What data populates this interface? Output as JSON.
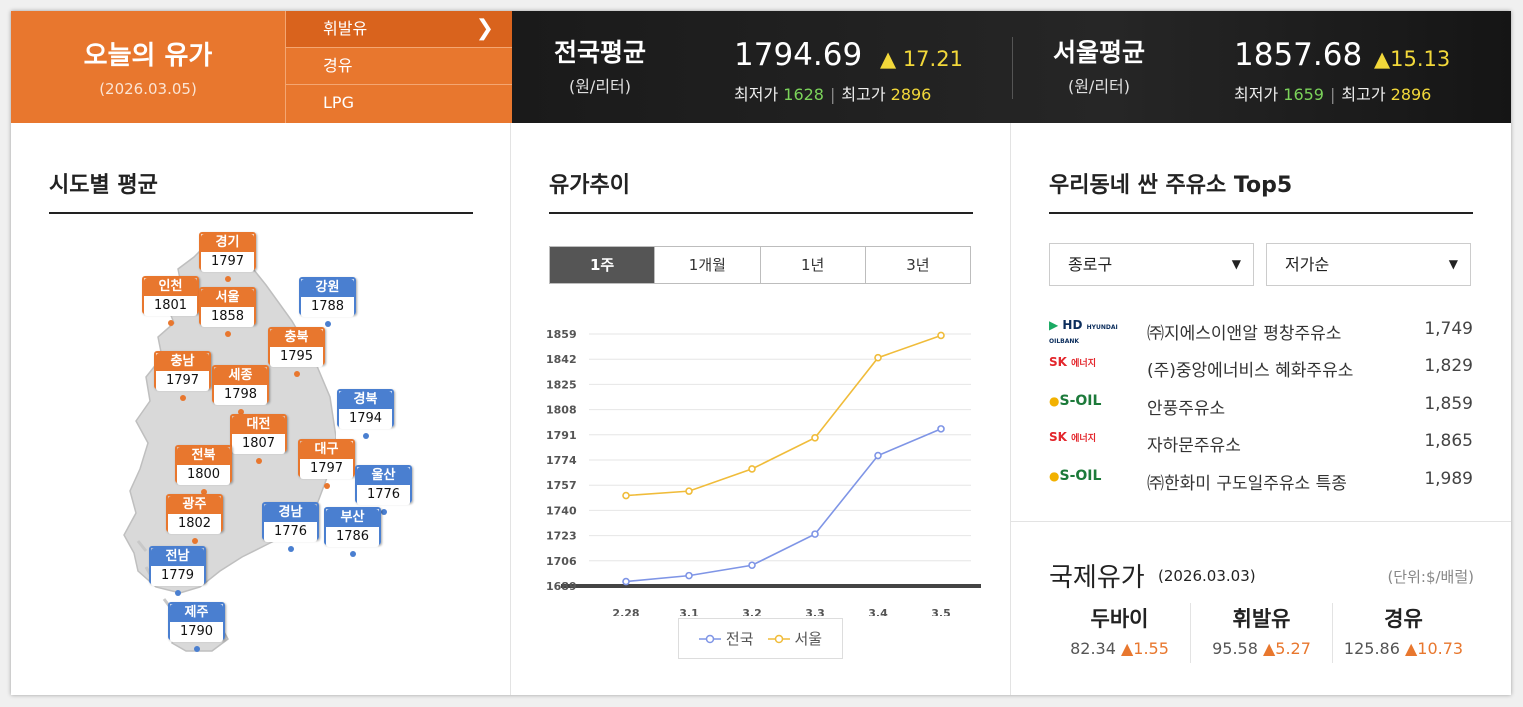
{
  "header": {
    "today_title": "오늘의 유가",
    "today_date": "(2026.03.05)",
    "fuel_types": [
      "휘발유",
      "경유",
      "LPG"
    ],
    "active_fuel": "휘발유",
    "national": {
      "title": "전국평균",
      "unit": "(원/리터)",
      "price": "1794.69",
      "change": "▲ 17.21",
      "min_label": "최저가",
      "min_value": "1628",
      "max_label": "최고가",
      "max_value": "2896"
    },
    "seoul": {
      "title": "서울평균",
      "unit": "(원/리터)",
      "price": "1857.68",
      "change": "▲15.13",
      "min_label": "최저가",
      "min_value": "1659",
      "max_label": "최고가",
      "max_value": "2896"
    }
  },
  "regional": {
    "title": "시도별 평균",
    "cities": [
      {
        "name": "경기",
        "value": "1797",
        "color": "orange"
      },
      {
        "name": "인천",
        "value": "1801",
        "color": "orange"
      },
      {
        "name": "서울",
        "value": "1858",
        "color": "orange"
      },
      {
        "name": "강원",
        "value": "1788",
        "color": "blue"
      },
      {
        "name": "충북",
        "value": "1795",
        "color": "orange"
      },
      {
        "name": "충남",
        "value": "1797",
        "color": "orange"
      },
      {
        "name": "세종",
        "value": "1798",
        "color": "orange"
      },
      {
        "name": "경북",
        "value": "1794",
        "color": "blue"
      },
      {
        "name": "대전",
        "value": "1807",
        "color": "orange"
      },
      {
        "name": "전북",
        "value": "1800",
        "color": "orange"
      },
      {
        "name": "대구",
        "value": "1797",
        "color": "orange"
      },
      {
        "name": "울산",
        "value": "1776",
        "color": "blue"
      },
      {
        "name": "광주",
        "value": "1802",
        "color": "orange"
      },
      {
        "name": "경남",
        "value": "1776",
        "color": "blue"
      },
      {
        "name": "부산",
        "value": "1786",
        "color": "blue"
      },
      {
        "name": "전남",
        "value": "1779",
        "color": "blue"
      },
      {
        "name": "제주",
        "value": "1790",
        "color": "blue"
      }
    ]
  },
  "trend": {
    "title": "유가추이",
    "tabs": [
      "1주",
      "1개월",
      "1년",
      "3년"
    ],
    "active_tab": "1주"
  },
  "chart_data": {
    "type": "line",
    "x": [
      "2.28",
      "3.1",
      "3.2",
      "3.3",
      "3.4",
      "3.5"
    ],
    "yticks": [
      1689,
      1706,
      1723,
      1740,
      1757,
      1774,
      1791,
      1808,
      1825,
      1842,
      1859
    ],
    "ylim": [
      1689,
      1859
    ],
    "grid": true,
    "legend_position": "bottom",
    "series": [
      {
        "name": "전국",
        "color": "#7f95e6",
        "values": [
          1692,
          1696,
          1703,
          1724,
          1777,
          1795
        ]
      },
      {
        "name": "서울",
        "color": "#f0bc3a",
        "values": [
          1750,
          1753,
          1768,
          1789,
          1843,
          1858
        ]
      }
    ]
  },
  "top5": {
    "title": "우리동네 싼 주유소 Top5",
    "district": "종로구",
    "sort": "저가순",
    "stations": [
      {
        "brand": "HD HYUNDAI OILBANK",
        "brand_label": "HD",
        "brand_sub": "HYUNDAI OILBANK",
        "name": "㈜지에스이앤알 평창주유소",
        "price": "1,749"
      },
      {
        "brand": "SK 에너지",
        "brand_label": "SK",
        "brand_sub": "에너지",
        "name": "(주)중앙에너비스 혜화주유소",
        "price": "1,829"
      },
      {
        "brand": "S-OIL",
        "brand_label": "S-OIL",
        "brand_sub": "",
        "name": "안풍주유소",
        "price": "1,859"
      },
      {
        "brand": "SK 에너지",
        "brand_label": "SK",
        "brand_sub": "에너지",
        "name": "자하문주유소",
        "price": "1,865"
      },
      {
        "brand": "S-OIL",
        "brand_label": "S-OIL",
        "brand_sub": "",
        "name": "㈜한화미 구도일주유소 특종",
        "price": "1,989"
      }
    ]
  },
  "international": {
    "title": "국제유가",
    "date": "(2026.03.03)",
    "unit": "(단위:$/배럴)",
    "items": [
      {
        "name": "두바이",
        "value": "82.34",
        "change": "▲1.55"
      },
      {
        "name": "휘발유",
        "value": "95.58",
        "change": "▲5.27"
      },
      {
        "name": "경유",
        "value": "125.86",
        "change": "▲10.73"
      }
    ]
  },
  "colors": {
    "accent": "#e8772e",
    "blue": "#4a7fd0",
    "national_line": "#7f95e6",
    "seoul_line": "#f0bc3a"
  }
}
